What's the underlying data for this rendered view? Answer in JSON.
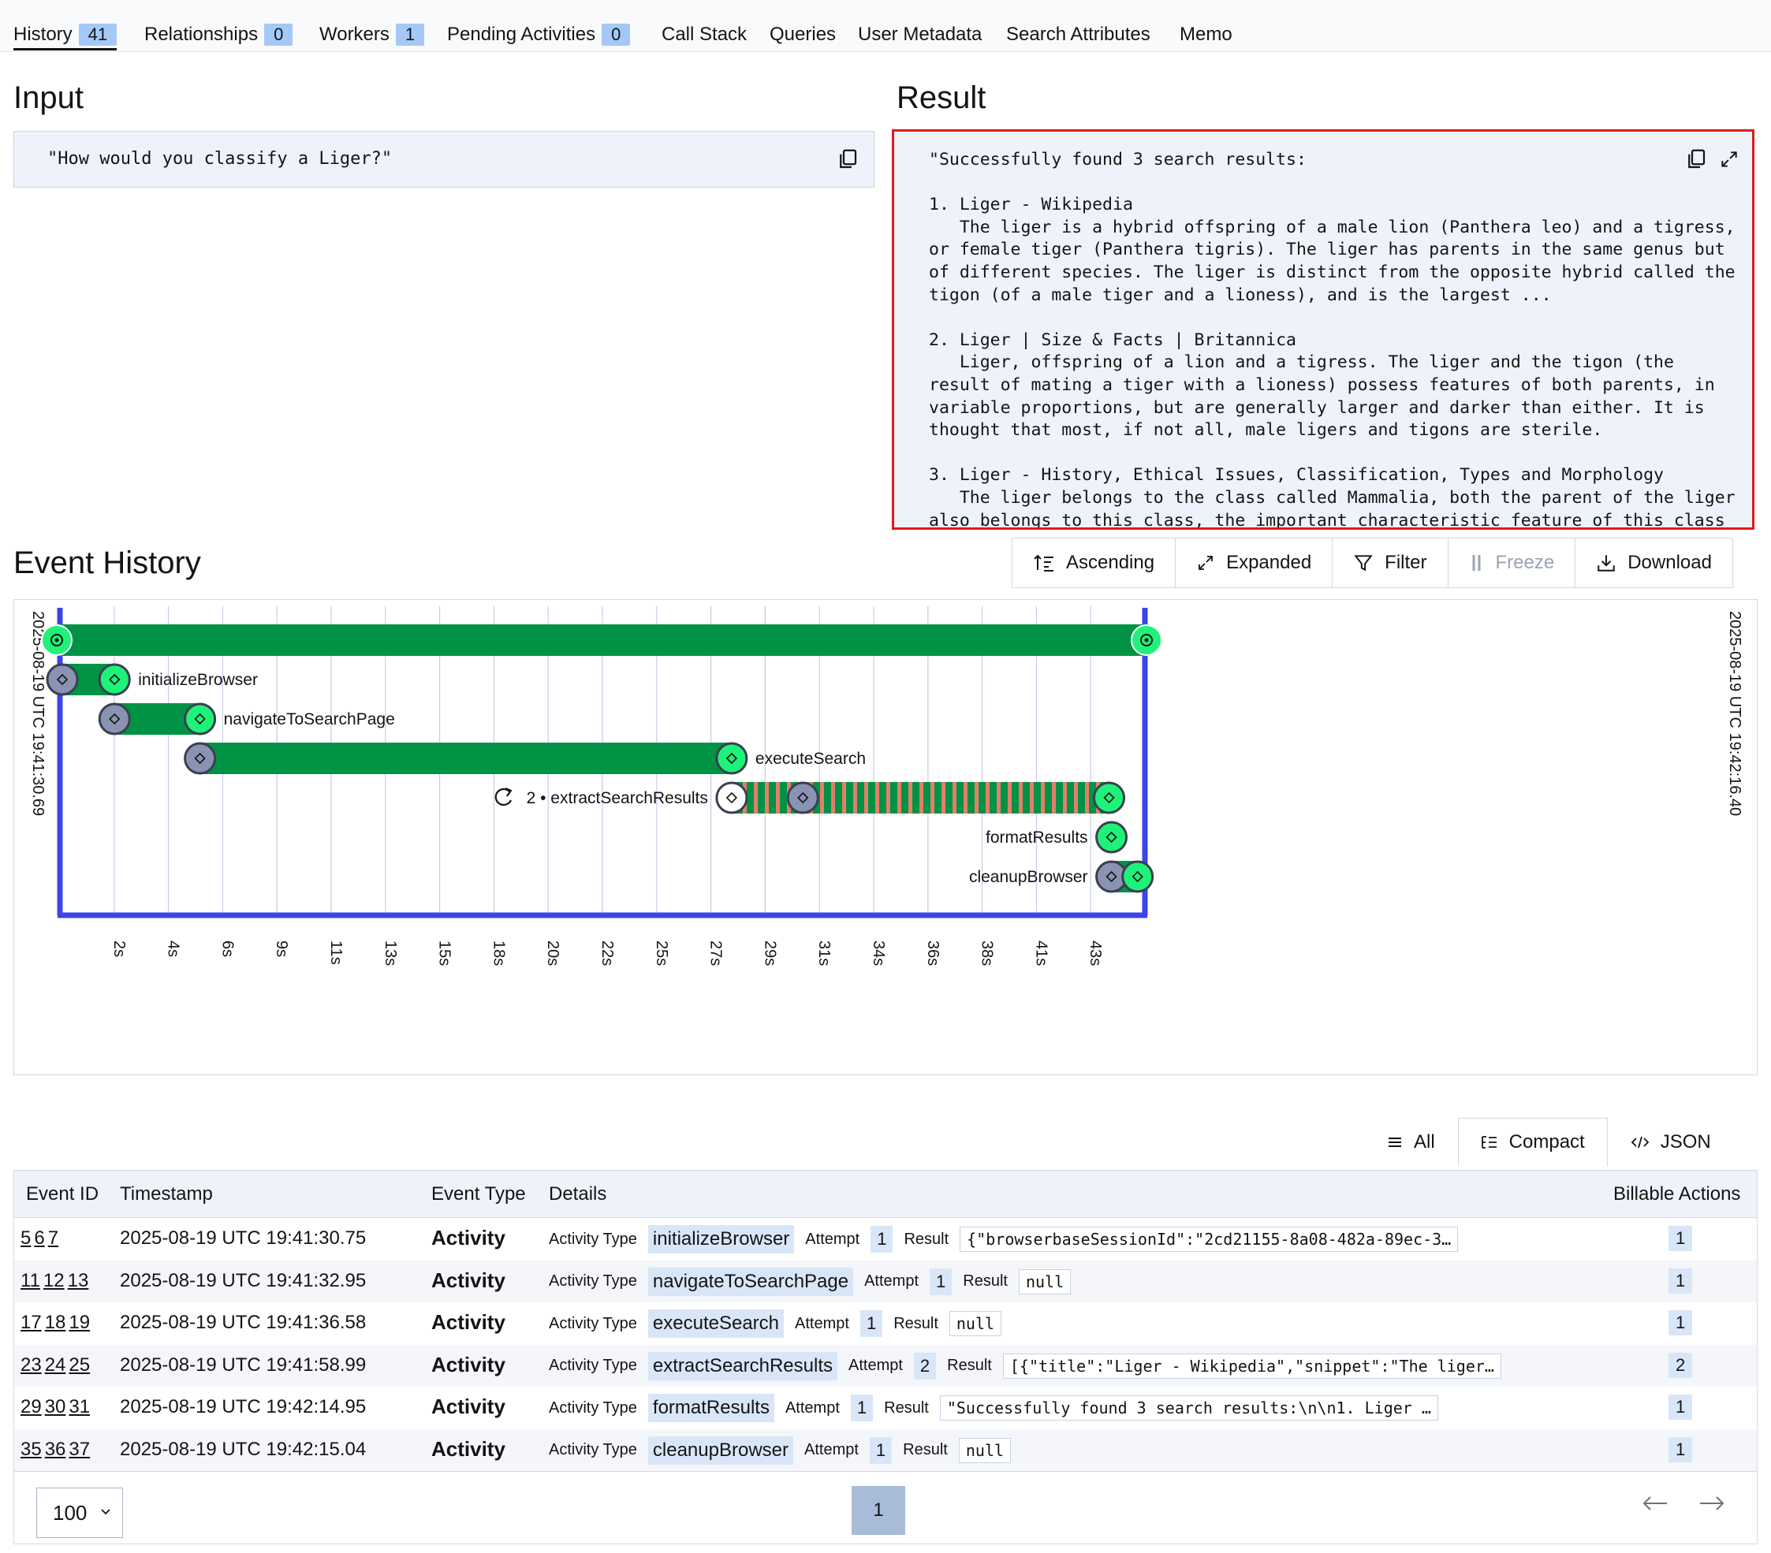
{
  "tabs": [
    {
      "label": "History",
      "badge": "41"
    },
    {
      "label": "Relationships",
      "badge": "0"
    },
    {
      "label": "Workers",
      "badge": "1"
    },
    {
      "label": "Pending Activities",
      "badge": "0"
    },
    {
      "label": "Call Stack"
    },
    {
      "label": "Queries"
    },
    {
      "label": "User Metadata"
    },
    {
      "label": "Search Attributes"
    },
    {
      "label": "Memo"
    }
  ],
  "input": {
    "title": "Input",
    "value": "\"How would you classify a Liger?\""
  },
  "result": {
    "title": "Result",
    "value": "\"Successfully found 3 search results:\n\n1. Liger - Wikipedia\n   The liger is a hybrid offspring of a male lion (Panthera leo) and a tigress,\nor female tiger (Panthera tigris). The liger has parents in the same genus but\nof different species. The liger is distinct from the opposite hybrid called the\ntigon (of a male tiger and a lioness), and is the largest ...\n\n2. Liger | Size & Facts | Britannica\n   Liger, offspring of a lion and a tigress. The liger and the tigon (the\nresult of mating a tiger with a lioness) possess features of both parents, in\nvariable proportions, but are generally larger and darker than either. It is\nthought that most, if not all, male ligers and tigons are sterile.\n\n3. Liger - History, Ethical Issues, Classification, Types and Morphology\n   The liger belongs to the class called Mammalia, both the parent of the liger\nalso belongs to this class, the important characteristic feature of this class"
  },
  "event_history": {
    "title": "Event History",
    "toolbar": {
      "ascending": "Ascending",
      "expanded": "Expanded",
      "filter": "Filter",
      "freeze": "Freeze",
      "download": "Download"
    }
  },
  "timeline": {
    "start_label": "2025-08-19 UTC 19:41:30.69",
    "end_label": "2025-08-19 UTC 19:42:16.40",
    "total_seconds": 45.71,
    "ticks": [
      "2s",
      "4s",
      "6s",
      "9s",
      "11s",
      "13s",
      "15s",
      "18s",
      "20s",
      "22s",
      "25s",
      "27s",
      "29s",
      "31s",
      "34s",
      "36s",
      "38s",
      "41s",
      "43s"
    ],
    "activities": [
      {
        "name": "initializeBrowser",
        "start": 0.1,
        "end": 2.3,
        "label_side": "right"
      },
      {
        "name": "navigateToSearchPage",
        "start": 2.3,
        "end": 5.9,
        "label_side": "right"
      },
      {
        "name": "executeSearch",
        "start": 5.9,
        "end": 28.3,
        "label_side": "right"
      },
      {
        "name": "extractSearchResults",
        "start": 28.3,
        "end": 44.2,
        "retry_at": 31.3,
        "attempt": "2",
        "retry_label": "2 • extractSearchResults",
        "label_side": "left"
      },
      {
        "name": "formatResults",
        "start": 44.3,
        "end": 44.3,
        "label_side": "left"
      },
      {
        "name": "cleanupBrowser",
        "start": 44.3,
        "end": 45.4,
        "label_side": "left"
      }
    ],
    "colors": {
      "green": "#009245",
      "bright": "#1ff279",
      "axis": "#3b45e8",
      "pending": "#8a93b2",
      "retry_stripe": "#e27f6a"
    }
  },
  "views": {
    "all": "All",
    "compact": "Compact",
    "json": "JSON"
  },
  "table": {
    "headers": {
      "event_id": "Event ID",
      "timestamp": "Timestamp",
      "event_type": "Event Type",
      "details": "Details",
      "billable": "Billable Actions"
    },
    "detail_labels": {
      "activity_type": "Activity Type",
      "attempt": "Attempt",
      "result": "Result"
    },
    "rows": [
      {
        "ids": [
          "5",
          "6",
          "7"
        ],
        "timestamp": "2025-08-19 UTC 19:41:30.75",
        "type": "Activity",
        "activity_type": "initializeBrowser",
        "attempt": "1",
        "result": "{\"browserbaseSessionId\":\"2cd21155-8a08-482a-89ec-3…",
        "billable": "1"
      },
      {
        "ids": [
          "11",
          "12",
          "13"
        ],
        "timestamp": "2025-08-19 UTC 19:41:32.95",
        "type": "Activity",
        "activity_type": "navigateToSearchPage",
        "attempt": "1",
        "result": "null",
        "billable": "1"
      },
      {
        "ids": [
          "17",
          "18",
          "19"
        ],
        "timestamp": "2025-08-19 UTC 19:41:36.58",
        "type": "Activity",
        "activity_type": "executeSearch",
        "attempt": "1",
        "result": "null",
        "billable": "1"
      },
      {
        "ids": [
          "23",
          "24",
          "25"
        ],
        "timestamp": "2025-08-19 UTC 19:41:58.99",
        "type": "Activity",
        "activity_type": "extractSearchResults",
        "attempt": "2",
        "result": "[{\"title\":\"Liger - Wikipedia\",\"snippet\":\"The liger…",
        "billable": "2"
      },
      {
        "ids": [
          "29",
          "30",
          "31"
        ],
        "timestamp": "2025-08-19 UTC 19:42:14.95",
        "type": "Activity",
        "activity_type": "formatResults",
        "attempt": "1",
        "result": "\"Successfully found 3 search results:\\n\\n1. Liger …",
        "billable": "1"
      },
      {
        "ids": [
          "35",
          "36",
          "37"
        ],
        "timestamp": "2025-08-19 UTC 19:42:15.04",
        "type": "Activity",
        "activity_type": "cleanupBrowser",
        "attempt": "1",
        "result": "null",
        "billable": "1"
      }
    ]
  },
  "pagination": {
    "page_size": "100",
    "current_page": "1"
  }
}
